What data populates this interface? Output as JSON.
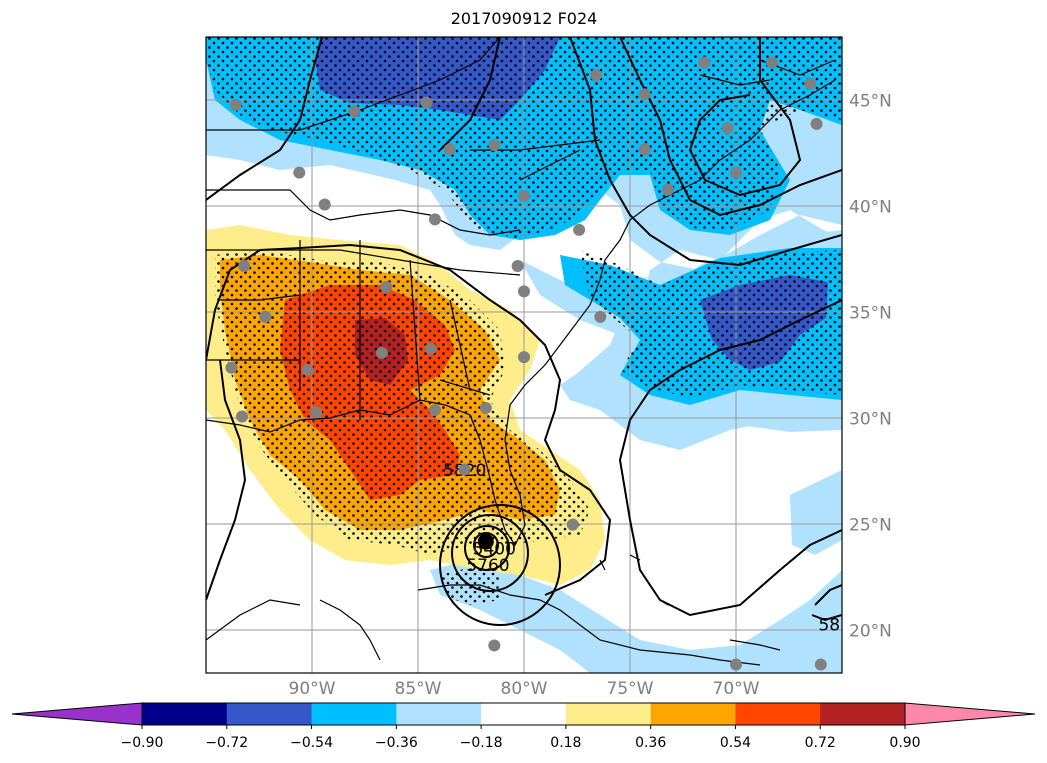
{
  "title": "2017090912 F024",
  "map": {
    "lon_range": [
      -95,
      -65
    ],
    "lat_range": [
      18,
      48
    ],
    "lat_ticks": [
      {
        "value": 45,
        "label": "45°N"
      },
      {
        "value": 40,
        "label": "40°N"
      },
      {
        "value": 35,
        "label": "35°N"
      },
      {
        "value": 30,
        "label": "30°N"
      },
      {
        "value": 25,
        "label": "25°N"
      },
      {
        "value": 20,
        "label": "20°N"
      }
    ],
    "lon_ticks": [
      {
        "value": -90,
        "label": "90°W"
      },
      {
        "value": -85,
        "label": "85°W"
      },
      {
        "value": -80,
        "label": "80°W"
      },
      {
        "value": -75,
        "label": "75°W"
      },
      {
        "value": -70,
        "label": "70°W"
      }
    ],
    "contour_labels": [
      {
        "text": "5820",
        "lon": -82.8,
        "lat": 27.3
      },
      {
        "text": "5400",
        "lon": -81.4,
        "lat": 23.6
      },
      {
        "text": "5760",
        "lon": -81.7,
        "lat": 22.8
      },
      {
        "text": "58",
        "lon": -65.6,
        "lat": 20.0
      }
    ],
    "stations": [
      [
        -93.6,
        44.8
      ],
      [
        -88.0,
        44.5
      ],
      [
        -84.6,
        44.9
      ],
      [
        -83.5,
        42.7
      ],
      [
        -90.6,
        41.6
      ],
      [
        -89.4,
        40.1
      ],
      [
        -84.2,
        39.4
      ],
      [
        -80.0,
        40.5
      ],
      [
        -76.6,
        46.2
      ],
      [
        -74.3,
        45.3
      ],
      [
        -71.5,
        46.8
      ],
      [
        -68.3,
        46.8
      ],
      [
        -66.5,
        45.8
      ],
      [
        -66.2,
        43.9
      ],
      [
        -70.4,
        43.7
      ],
      [
        -74.3,
        42.7
      ],
      [
        -73.2,
        40.8
      ],
      [
        -70.0,
        41.6
      ],
      [
        -81.4,
        42.9
      ],
      [
        -77.4,
        38.9
      ],
      [
        -80.3,
        37.2
      ],
      [
        -80.0,
        36.0
      ],
      [
        -76.4,
        34.8
      ],
      [
        -93.2,
        37.2
      ],
      [
        -92.2,
        34.8
      ],
      [
        -93.8,
        32.4
      ],
      [
        -90.2,
        32.3
      ],
      [
        -86.5,
        36.2
      ],
      [
        -86.7,
        33.1
      ],
      [
        -84.4,
        33.3
      ],
      [
        -80.0,
        32.9
      ],
      [
        -93.3,
        30.1
      ],
      [
        -89.8,
        30.3
      ],
      [
        -84.2,
        30.4
      ],
      [
        -81.8,
        30.5
      ],
      [
        -82.8,
        27.6
      ],
      [
        -77.7,
        25.0
      ],
      [
        -81.4,
        19.3
      ],
      [
        -70.0,
        18.4
      ],
      [
        -66.0,
        18.4
      ]
    ],
    "hurricane": {
      "name": "storm-center",
      "lon": -81.8,
      "lat": 24.2
    }
  },
  "colorbar": {
    "levels": [
      -0.9,
      -0.72,
      -0.54,
      -0.36,
      -0.18,
      0.18,
      0.36,
      0.54,
      0.72,
      0.9
    ],
    "tick_labels": [
      "−0.90",
      "−0.72",
      "−0.54",
      "−0.36",
      "−0.18",
      "0.18",
      "0.36",
      "0.54",
      "0.72",
      "0.90"
    ],
    "colors": {
      "under": "#9932cc",
      "b1": "#00008b",
      "b2": "#3558c8",
      "b3": "#00bfff",
      "b4": "#b0e2ff",
      "mid": "#ffffff",
      "r1": "#ffec8b",
      "r2": "#ffa500",
      "r3": "#ff4500",
      "r4": "#b22222",
      "over": "#ff88aa"
    }
  }
}
